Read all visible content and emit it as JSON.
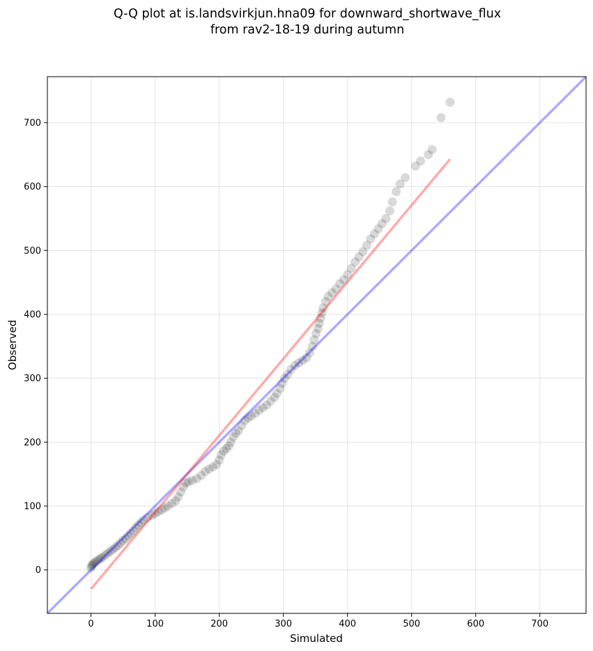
{
  "chart_data": {
    "type": "scatter",
    "title": [
      "Q-Q plot at is.landsvirkjun.hna09 for downward_shortwave_flux",
      "from rav2-18-19 during autumn"
    ],
    "xlabel": "Simulated",
    "ylabel": "Observed",
    "xlim": [
      -68,
      772
    ],
    "ylim": [
      -68,
      772
    ],
    "xticks": [
      0,
      100,
      200,
      300,
      400,
      500,
      600,
      700
    ],
    "yticks": [
      0,
      100,
      200,
      300,
      400,
      500,
      600,
      700
    ],
    "grid": true,
    "points": [
      [
        0,
        3
      ],
      [
        1,
        6
      ],
      [
        2,
        8
      ],
      [
        4,
        10
      ],
      [
        6,
        12
      ],
      [
        9,
        14
      ],
      [
        12,
        16
      ],
      [
        15,
        18
      ],
      [
        18,
        20
      ],
      [
        22,
        23
      ],
      [
        26,
        26
      ],
      [
        30,
        29
      ],
      [
        34,
        32
      ],
      [
        38,
        35
      ],
      [
        42,
        38
      ],
      [
        46,
        42
      ],
      [
        50,
        46
      ],
      [
        54,
        49
      ],
      [
        58,
        53
      ],
      [
        62,
        57
      ],
      [
        66,
        61
      ],
      [
        70,
        66
      ],
      [
        74,
        70
      ],
      [
        78,
        74
      ],
      [
        82,
        78
      ],
      [
        88,
        82
      ],
      [
        95,
        85
      ],
      [
        100,
        88
      ],
      [
        105,
        91
      ],
      [
        110,
        94
      ],
      [
        115,
        97
      ],
      [
        120,
        100
      ],
      [
        126,
        104
      ],
      [
        132,
        108
      ],
      [
        136,
        114
      ],
      [
        140,
        122
      ],
      [
        144,
        130
      ],
      [
        148,
        136
      ],
      [
        152,
        138
      ],
      [
        158,
        140
      ],
      [
        165,
        143
      ],
      [
        172,
        148
      ],
      [
        178,
        154
      ],
      [
        184,
        158
      ],
      [
        190,
        161
      ],
      [
        196,
        165
      ],
      [
        200,
        172
      ],
      [
        203,
        180
      ],
      [
        207,
        186
      ],
      [
        211,
        190
      ],
      [
        215,
        194
      ],
      [
        218,
        200
      ],
      [
        222,
        208
      ],
      [
        226,
        214
      ],
      [
        230,
        218
      ],
      [
        235,
        226
      ],
      [
        240,
        234
      ],
      [
        245,
        238
      ],
      [
        250,
        241
      ],
      [
        256,
        245
      ],
      [
        262,
        250
      ],
      [
        268,
        254
      ],
      [
        274,
        258
      ],
      [
        280,
        264
      ],
      [
        286,
        270
      ],
      [
        290,
        276
      ],
      [
        295,
        284
      ],
      [
        298,
        292
      ],
      [
        302,
        300
      ],
      [
        307,
        306
      ],
      [
        312,
        314
      ],
      [
        318,
        320
      ],
      [
        324,
        324
      ],
      [
        330,
        328
      ],
      [
        336,
        332
      ],
      [
        341,
        340
      ],
      [
        345,
        350
      ],
      [
        348,
        360
      ],
      [
        351,
        370
      ],
      [
        354,
        378
      ],
      [
        356,
        386
      ],
      [
        358,
        394
      ],
      [
        360,
        402
      ],
      [
        362,
        410
      ],
      [
        366,
        420
      ],
      [
        370,
        428
      ],
      [
        376,
        434
      ],
      [
        382,
        440
      ],
      [
        388,
        448
      ],
      [
        394,
        454
      ],
      [
        400,
        462
      ],
      [
        406,
        472
      ],
      [
        412,
        482
      ],
      [
        418,
        490
      ],
      [
        424,
        498
      ],
      [
        430,
        508
      ],
      [
        436,
        518
      ],
      [
        442,
        526
      ],
      [
        448,
        534
      ],
      [
        454,
        542
      ],
      [
        460,
        550
      ],
      [
        466,
        562
      ],
      [
        470,
        576
      ],
      [
        476,
        592
      ],
      [
        482,
        604
      ],
      [
        490,
        614
      ],
      [
        506,
        632
      ],
      [
        514,
        640
      ],
      [
        526,
        650
      ],
      [
        532,
        658
      ],
      [
        546,
        708
      ],
      [
        560,
        732
      ]
    ],
    "fit_line": {
      "name": "regression",
      "color": "#ff0000",
      "from": [
        0,
        -30
      ],
      "to": [
        560,
        643
      ]
    },
    "reference_line": {
      "name": "identity",
      "color": "#0000ff",
      "from": [
        -68,
        -68
      ],
      "to": [
        772,
        772
      ]
    }
  }
}
